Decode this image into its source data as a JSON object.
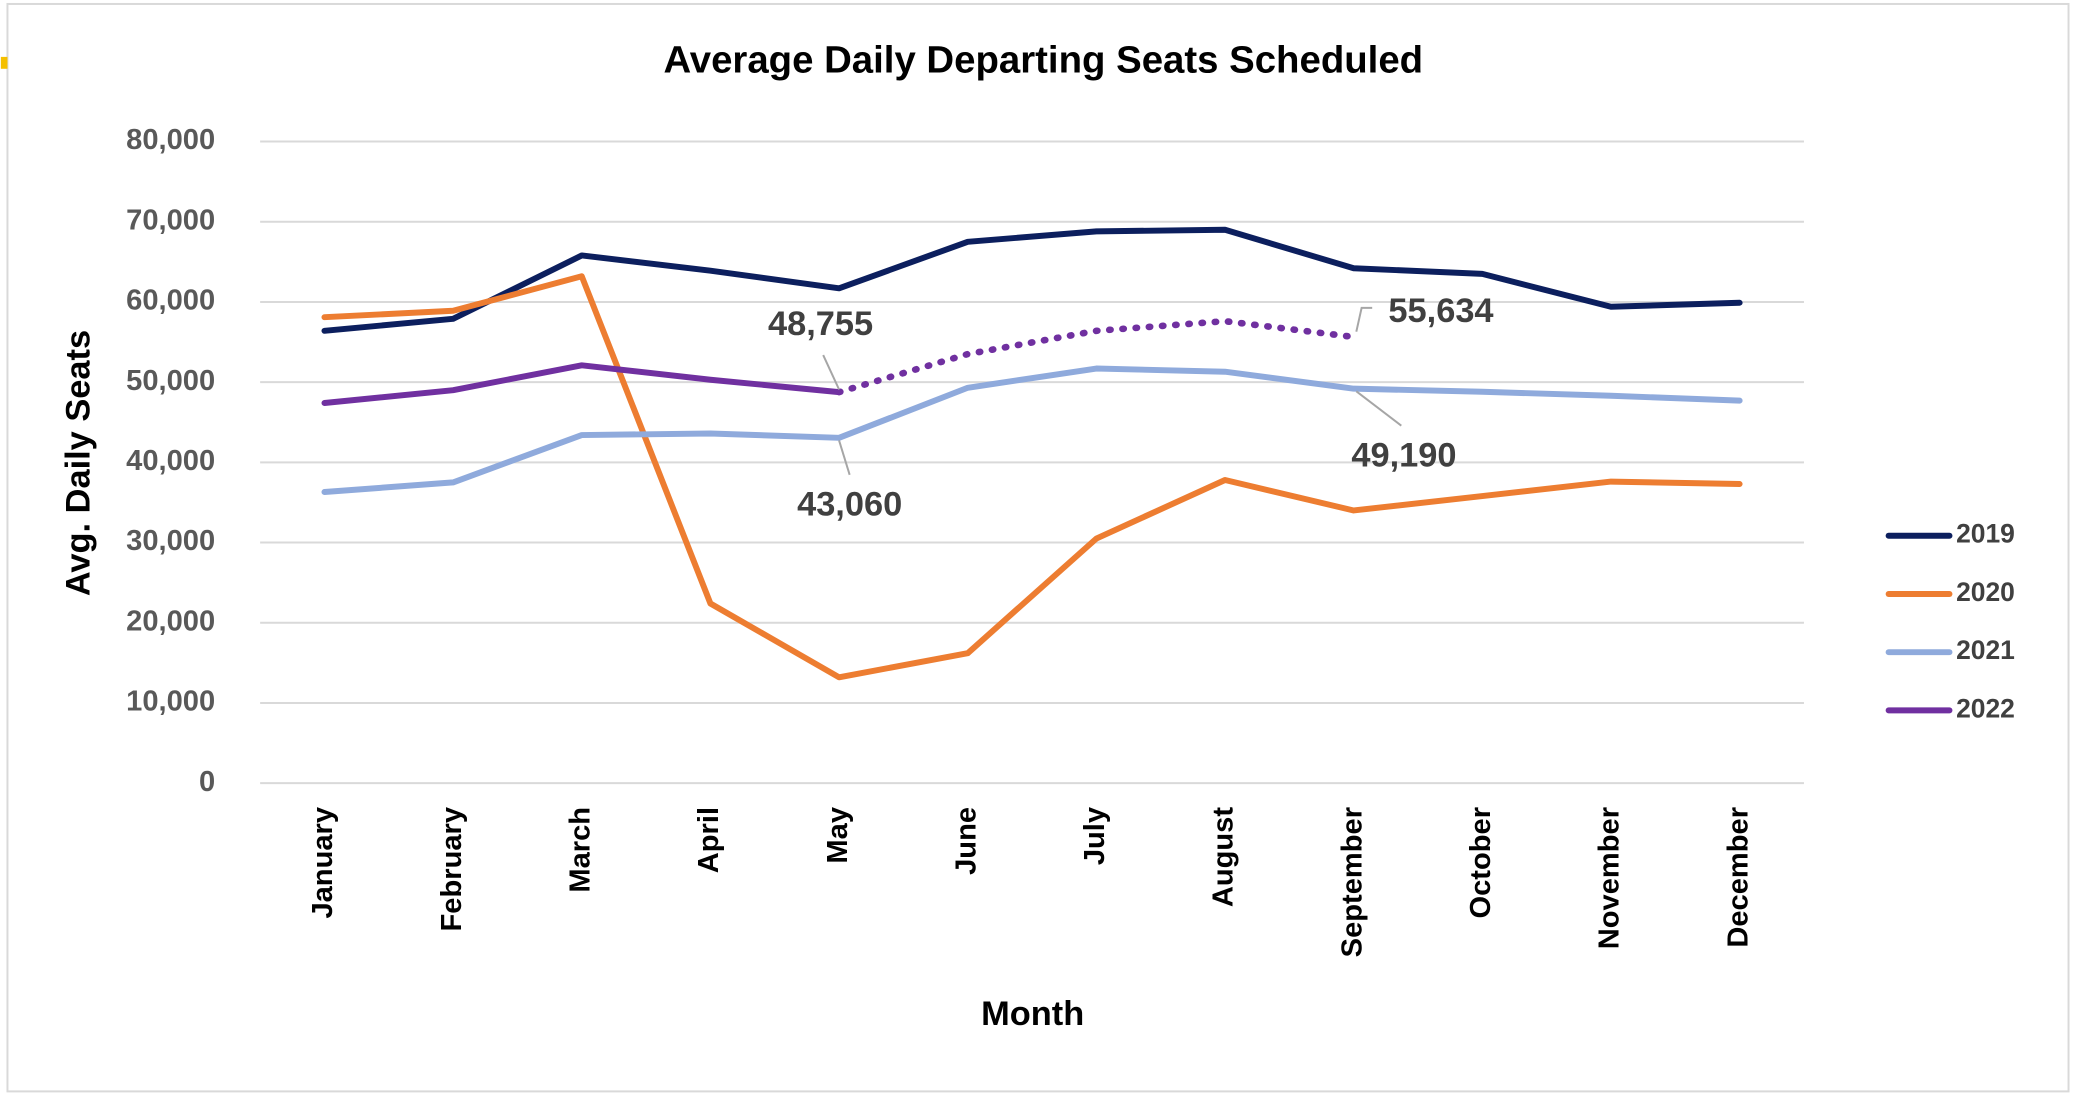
{
  "chart_data": {
    "type": "line",
    "title": "Average Daily Departing Seats Scheduled",
    "x_label": "Month",
    "y_label": "Avg. Daily Seats",
    "categories": [
      "January",
      "February",
      "March",
      "April",
      "May",
      "June",
      "July",
      "August",
      "September",
      "October",
      "November",
      "December"
    ],
    "series": [
      {
        "name": "2019",
        "color": "#0c1f5e",
        "values": [
          56400,
          57900,
          65800,
          63900,
          61700,
          67500,
          68800,
          69000,
          64200,
          63500,
          59400,
          59900
        ]
      },
      {
        "name": "2020",
        "color": "#ed7d31",
        "values": [
          58100,
          58900,
          63200,
          22400,
          13200,
          16200,
          30500,
          37800,
          34000,
          35800,
          37600,
          37300
        ]
      },
      {
        "name": "2021",
        "color": "#8faadc",
        "values": [
          36300,
          37500,
          43400,
          43600,
          43060,
          49300,
          51700,
          51300,
          49190,
          48800,
          48300,
          47700
        ],
        "value_labels": [
          null,
          null,
          null,
          null,
          "43,060",
          null,
          null,
          null,
          "49,190",
          null,
          null,
          null
        ]
      },
      {
        "name": "2022",
        "color": "#7030a0",
        "values": [
          47400,
          49000,
          52100,
          50300,
          48755,
          53500,
          56400,
          57600,
          55634,
          null,
          null,
          null
        ],
        "value_labels": [
          null,
          null,
          null,
          null,
          "48,755",
          null,
          null,
          null,
          "55,634",
          null,
          null,
          null
        ],
        "dotted_from": 4
      }
    ],
    "ylim": [
      0,
      80000
    ],
    "yticks": [
      0,
      {
        "value": 10000,
        "label": "10,000"
      },
      {
        "value": 20000,
        "label": "20,000"
      },
      {
        "value": 30000,
        "label": "30,000"
      },
      {
        "value": 40000,
        "label": "40,000"
      },
      {
        "value": 50000,
        "label": "50,000"
      },
      {
        "value": 60000,
        "label": "60,000"
      },
      {
        "value": 70000,
        "label": "70,000"
      },
      {
        "value": 80000,
        "label": "80,000"
      }
    ],
    "grid": true,
    "legend": "right"
  }
}
